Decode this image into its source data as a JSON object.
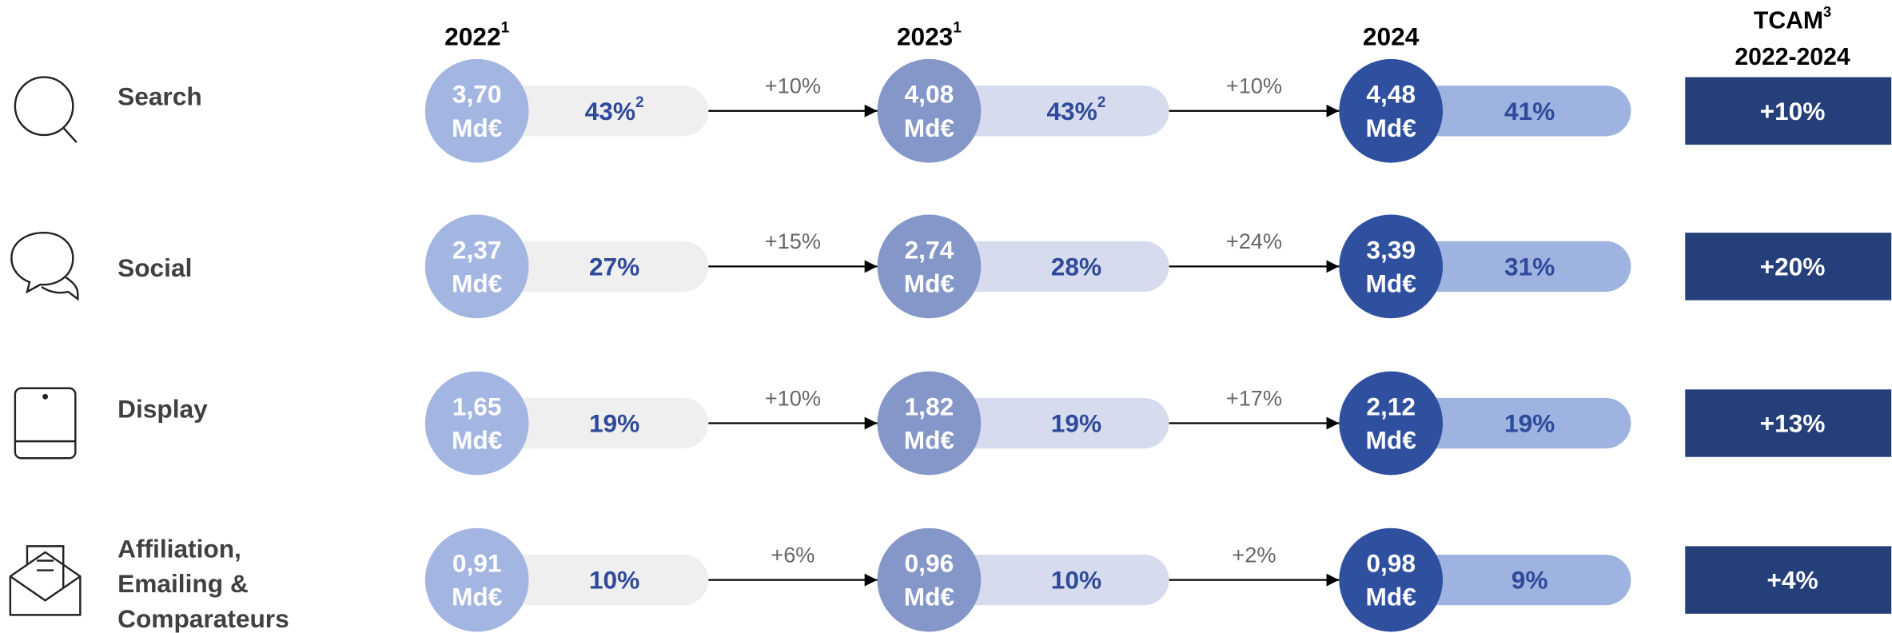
{
  "header": {
    "years": [
      {
        "label": "2022",
        "note": "1"
      },
      {
        "label": "2023",
        "note": "1"
      },
      {
        "label": "2024"
      }
    ],
    "tcam": {
      "label": "TCAM",
      "note": "3",
      "period": "2022-2024"
    }
  },
  "unit": "Md€",
  "rows": [
    {
      "label": [
        "Search"
      ],
      "values": [
        {
          "amount": "3,70",
          "share": "43%",
          "note": "2"
        },
        {
          "amount": "4,08",
          "share": "43%",
          "note": "2"
        },
        {
          "amount": "4,48",
          "share": "41%"
        }
      ],
      "growth": [
        "+10%",
        "+10%"
      ],
      "tcam": "+10%"
    },
    {
      "label": [
        "Social"
      ],
      "values": [
        {
          "amount": "2,37",
          "share": "27%"
        },
        {
          "amount": "2,74",
          "share": "28%"
        },
        {
          "amount": "3,39",
          "share": "31%"
        }
      ],
      "growth": [
        "+15%",
        "+24%"
      ],
      "tcam": "+20%"
    },
    {
      "label": [
        "Display"
      ],
      "values": [
        {
          "amount": "1,65",
          "share": "19%"
        },
        {
          "amount": "1,82",
          "share": "19%"
        },
        {
          "amount": "2,12",
          "share": "19%"
        }
      ],
      "growth": [
        "+10%",
        "+17%"
      ],
      "tcam": "+13%"
    },
    {
      "label": [
        "Affiliation,",
        "Emailing &",
        "Comparateurs"
      ],
      "values": [
        {
          "amount": "0,91",
          "share": "10%"
        },
        {
          "amount": "0,96",
          "share": "10%"
        },
        {
          "amount": "0,98",
          "share": "9%"
        }
      ],
      "growth": [
        "+6%",
        "+2%"
      ],
      "tcam": "+4%"
    }
  ]
}
